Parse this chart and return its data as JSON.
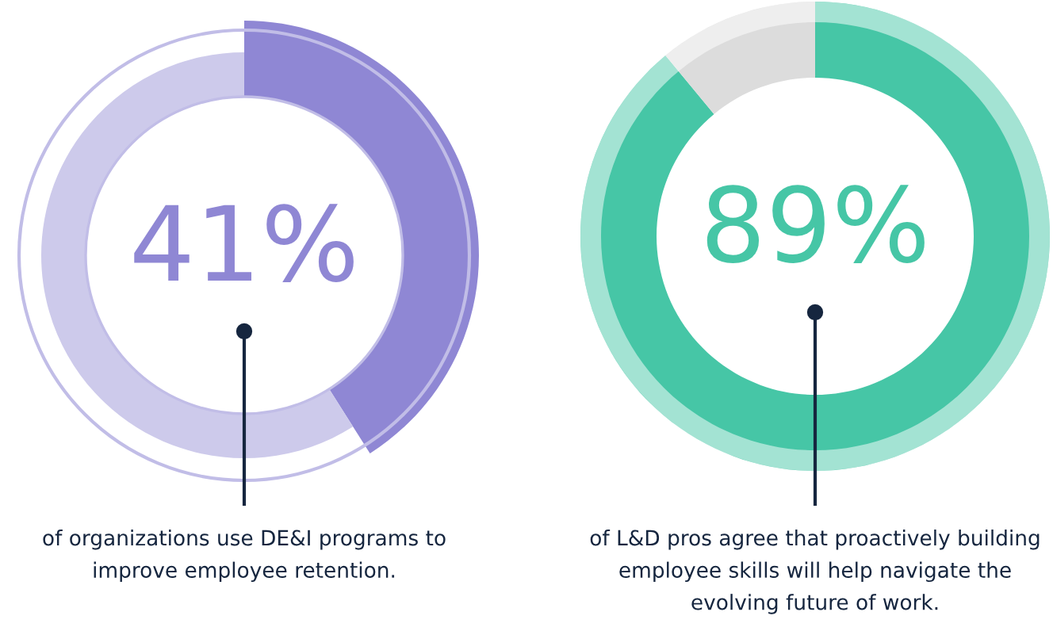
{
  "chart_data": [
    {
      "type": "donut",
      "categories": [
        null,
        null
      ],
      "values": [
        41,
        59
      ],
      "colors": [
        "#8f87d4",
        "#cdcaeb"
      ],
      "annotations": [
        "41%",
        "of organizations use DE&I programs to\nimprove employee retention."
      ]
    },
    {
      "type": "donut",
      "categories": [
        null,
        null
      ],
      "values": [
        89,
        11
      ],
      "colors": [
        "#46c6a6",
        "#dcdcdc"
      ],
      "annotations": [
        "89%",
        "of L&D pros agree that proactively building\nemployee skills will help navigate the\nevolving future of work."
      ]
    }
  ]
}
